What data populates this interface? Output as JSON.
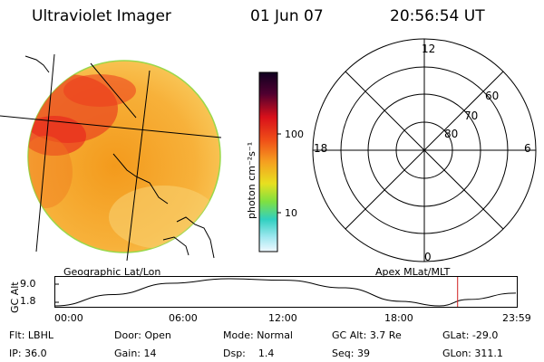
{
  "header": {
    "title": "Ultraviolet Imager",
    "date": "01 Jun 07",
    "time": "20:56:54 UT"
  },
  "colorbar": {
    "unit_label": "photon cm⁻²s⁻¹",
    "ticks": [
      "100",
      "10"
    ]
  },
  "polar": {
    "mlt_labels": {
      "top": "12",
      "left": "18",
      "right": "6",
      "bottom": "0"
    },
    "lat_labels": [
      "60",
      "70",
      "80"
    ]
  },
  "captions": {
    "left": "Geographic Lat/Lon",
    "right": "Apex MLat/MLT"
  },
  "alt_plot": {
    "ylabel": "GC Alt",
    "y_ticks": [
      "9.0",
      "1.8"
    ],
    "x_ticks": [
      "00:00",
      "06:00",
      "12:00",
      "18:00",
      "23:59"
    ],
    "chart_data": {
      "type": "line",
      "xlabel": "",
      "ylabel": "GC Alt",
      "ylim": [
        1.8,
        9.0
      ],
      "x": [
        "00:00",
        "03:00",
        "06:00",
        "09:00",
        "12:00",
        "15:00",
        "18:00",
        "20:00",
        "21:30",
        "23:59"
      ],
      "series": [
        {
          "values": [
            1.8,
            4.8,
            7.8,
            9.0,
            8.6,
            6.6,
            3.0,
            1.8,
            3.5,
            5.2
          ]
        }
      ],
      "marker_time": "20:56:54"
    }
  },
  "status": {
    "row1": [
      {
        "label": "Flt:",
        "value": "LBHL"
      },
      {
        "label": "Door:",
        "value": "Open"
      },
      {
        "label": "Mode:",
        "value": "Normal"
      },
      {
        "label": "GC Alt:",
        "value": "3.7 Re"
      },
      {
        "label": "GLat:",
        "value": "-29.0"
      }
    ],
    "row2": [
      {
        "label": "IP:",
        "value": "36.0"
      },
      {
        "label": "Gain:",
        "value": "14"
      },
      {
        "label": "Dsp:",
        "value": "1.4"
      },
      {
        "label": "Seq:",
        "value": "39"
      },
      {
        "label": "GLon:",
        "value": "311.1"
      }
    ]
  },
  "colors": {
    "disk_base": "#f5a623",
    "disk_edge": "#b8e04a",
    "hotspot": "#e8201c",
    "marker": "#d02020"
  }
}
